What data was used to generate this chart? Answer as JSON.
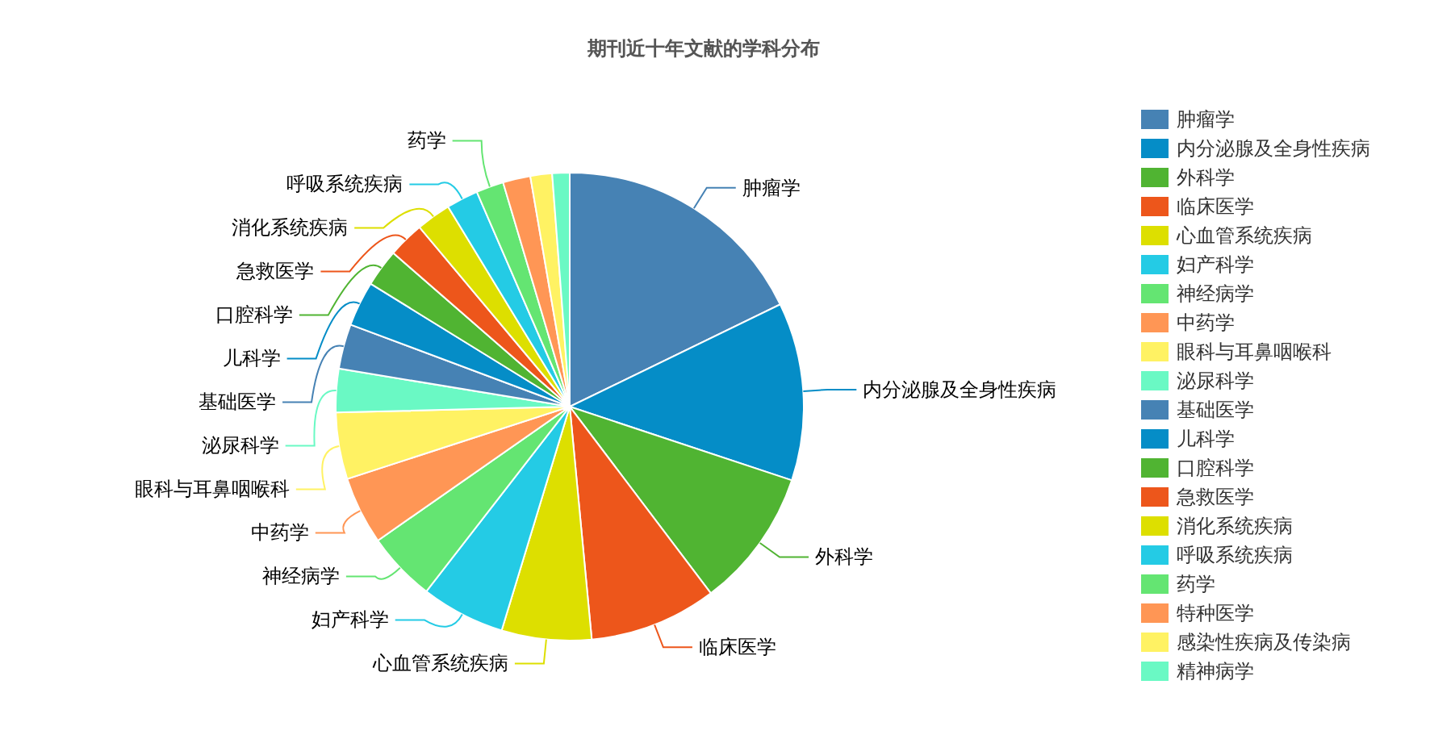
{
  "chart_data": {
    "type": "pie",
    "title": "期刊近十年文献的学科分布",
    "categories": [
      "肿瘤学",
      "内分泌腺及全身性疾病",
      "外科学",
      "临床医学",
      "心血管系统疾病",
      "妇产科学",
      "神经病学",
      "中药学",
      "眼科与耳鼻咽喉科",
      "泌尿科学",
      "基础医学",
      "儿科学",
      "口腔科学",
      "急救医学",
      "消化系统疾病",
      "呼吸系统疾病",
      "药学",
      "特种医学",
      "感染性疾病及传染病",
      "精神病学"
    ],
    "values": [
      17.8,
      12.3,
      9.6,
      8.8,
      6.2,
      5.8,
      4.8,
      4.7,
      4.6,
      3.0,
      3.1,
      3.1,
      2.6,
      2.5,
      2.4,
      2.2,
      1.9,
      1.9,
      1.5,
      1.2
    ],
    "colors": [
      "#4682b4",
      "#058dc7",
      "#50b432",
      "#ed561b",
      "#dddf00",
      "#24cbe5",
      "#64e572",
      "#ff9655",
      "#fff263",
      "#6af9c4",
      "#4682b4",
      "#058dc7",
      "#50b432",
      "#ed561b",
      "#dddf00",
      "#24cbe5",
      "#64e572",
      "#ff9655",
      "#fff263",
      "#6af9c4"
    ],
    "legend": "right"
  }
}
